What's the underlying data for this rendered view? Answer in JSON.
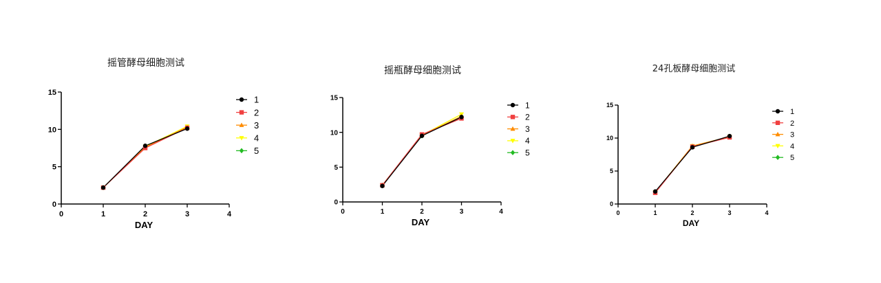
{
  "chart_data": [
    {
      "type": "line",
      "title": "摇管酵母细胞测试",
      "xlabel": "DAY",
      "ylabel": "",
      "xlim": [
        0,
        4
      ],
      "ylim": [
        0,
        15
      ],
      "xticks": [
        "0",
        "1",
        "2",
        "3",
        "4"
      ],
      "yticks": [
        "0",
        "5",
        "10",
        "15"
      ],
      "x": [
        1,
        2,
        3
      ],
      "grid": false,
      "legend_position": "right",
      "series": [
        {
          "name": "1",
          "values": [
            2.2,
            7.8,
            10.1
          ]
        },
        {
          "name": "2",
          "values": [
            2.2,
            7.5,
            10.2
          ]
        },
        {
          "name": "3",
          "values": [
            2.2,
            7.6,
            10.3
          ]
        },
        {
          "name": "4",
          "values": [
            2.2,
            7.7,
            10.4
          ]
        },
        {
          "name": "5",
          "values": [
            2.2,
            7.7,
            10.2
          ]
        }
      ]
    },
    {
      "type": "line",
      "title": "摇瓶酵母细胞测试",
      "xlabel": "DAY",
      "ylabel": "",
      "xlim": [
        0,
        4
      ],
      "ylim": [
        0,
        15
      ],
      "xticks": [
        "0",
        "1",
        "2",
        "3",
        "4"
      ],
      "yticks": [
        "0",
        "5",
        "10",
        "15"
      ],
      "x": [
        1,
        2,
        3
      ],
      "grid": false,
      "legend_position": "right",
      "series": [
        {
          "name": "1",
          "values": [
            2.3,
            9.5,
            12.2
          ]
        },
        {
          "name": "2",
          "values": [
            2.4,
            9.7,
            12.0
          ]
        },
        {
          "name": "3",
          "values": [
            2.4,
            9.6,
            12.3
          ]
        },
        {
          "name": "4",
          "values": [
            2.4,
            9.6,
            12.6
          ]
        },
        {
          "name": "5",
          "values": [
            2.4,
            9.5,
            12.3
          ]
        }
      ]
    },
    {
      "type": "line",
      "title": "24孔板酵母细胞测试",
      "xlabel": "DAY",
      "ylabel": "",
      "xlim": [
        0,
        4
      ],
      "ylim": [
        0,
        15
      ],
      "xticks": [
        "0",
        "1",
        "2",
        "3",
        "4"
      ],
      "yticks": [
        "0",
        "5",
        "10",
        "15"
      ],
      "x": [
        1,
        2,
        3
      ],
      "grid": false,
      "legend_position": "right",
      "series": [
        {
          "name": "1",
          "values": [
            1.9,
            8.6,
            10.3
          ]
        },
        {
          "name": "2",
          "values": [
            1.7,
            8.7,
            10.1
          ]
        },
        {
          "name": "3",
          "values": [
            1.8,
            8.8,
            10.2
          ]
        },
        {
          "name": "4",
          "values": [
            1.8,
            8.8,
            10.2
          ]
        },
        {
          "name": "5",
          "values": [
            1.8,
            8.7,
            10.2
          ]
        }
      ]
    }
  ],
  "series_styles": [
    {
      "marker": "circle",
      "color": "#000000"
    },
    {
      "marker": "square",
      "color": "#f04040"
    },
    {
      "marker": "triangle-up",
      "color": "#ff8c00"
    },
    {
      "marker": "triangle-down",
      "color": "#ffff00"
    },
    {
      "marker": "diamond",
      "color": "#22bb22"
    }
  ]
}
